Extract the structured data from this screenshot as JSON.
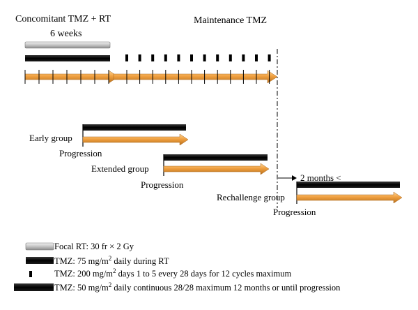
{
  "timeline": {
    "phase_concomitant": "Concomitant TMZ + RT",
    "duration_label": "6 weeks",
    "phase_maintenance": "Maintenance TMZ"
  },
  "groups": [
    {
      "name": "Early group",
      "event": "Progression"
    },
    {
      "name": "Extended group",
      "event": "Progression"
    },
    {
      "name": "Rechallenge group",
      "event": "Progression",
      "interval": "2 months <"
    }
  ],
  "legend": [
    {
      "text": "Focal RT: 30 fr × 2 Gy"
    },
    {
      "prefix": "TMZ: 75 mg/m",
      "sup": "2",
      "suffix": " daily during RT"
    },
    {
      "prefix": "TMZ: 200 mg/m",
      "sup": "2",
      "suffix": " days 1 to 5 every 28 days for 12 cycles maximum"
    },
    {
      "prefix": "TMZ: 50 mg/m",
      "sup": "2",
      "suffix": " daily continuous 28/28 maximum 12 months or until progression"
    }
  ],
  "colors": {
    "arrow_orange": "#f0a040",
    "black_bar": "#000000",
    "rt_gray": "#b8b8b8"
  }
}
